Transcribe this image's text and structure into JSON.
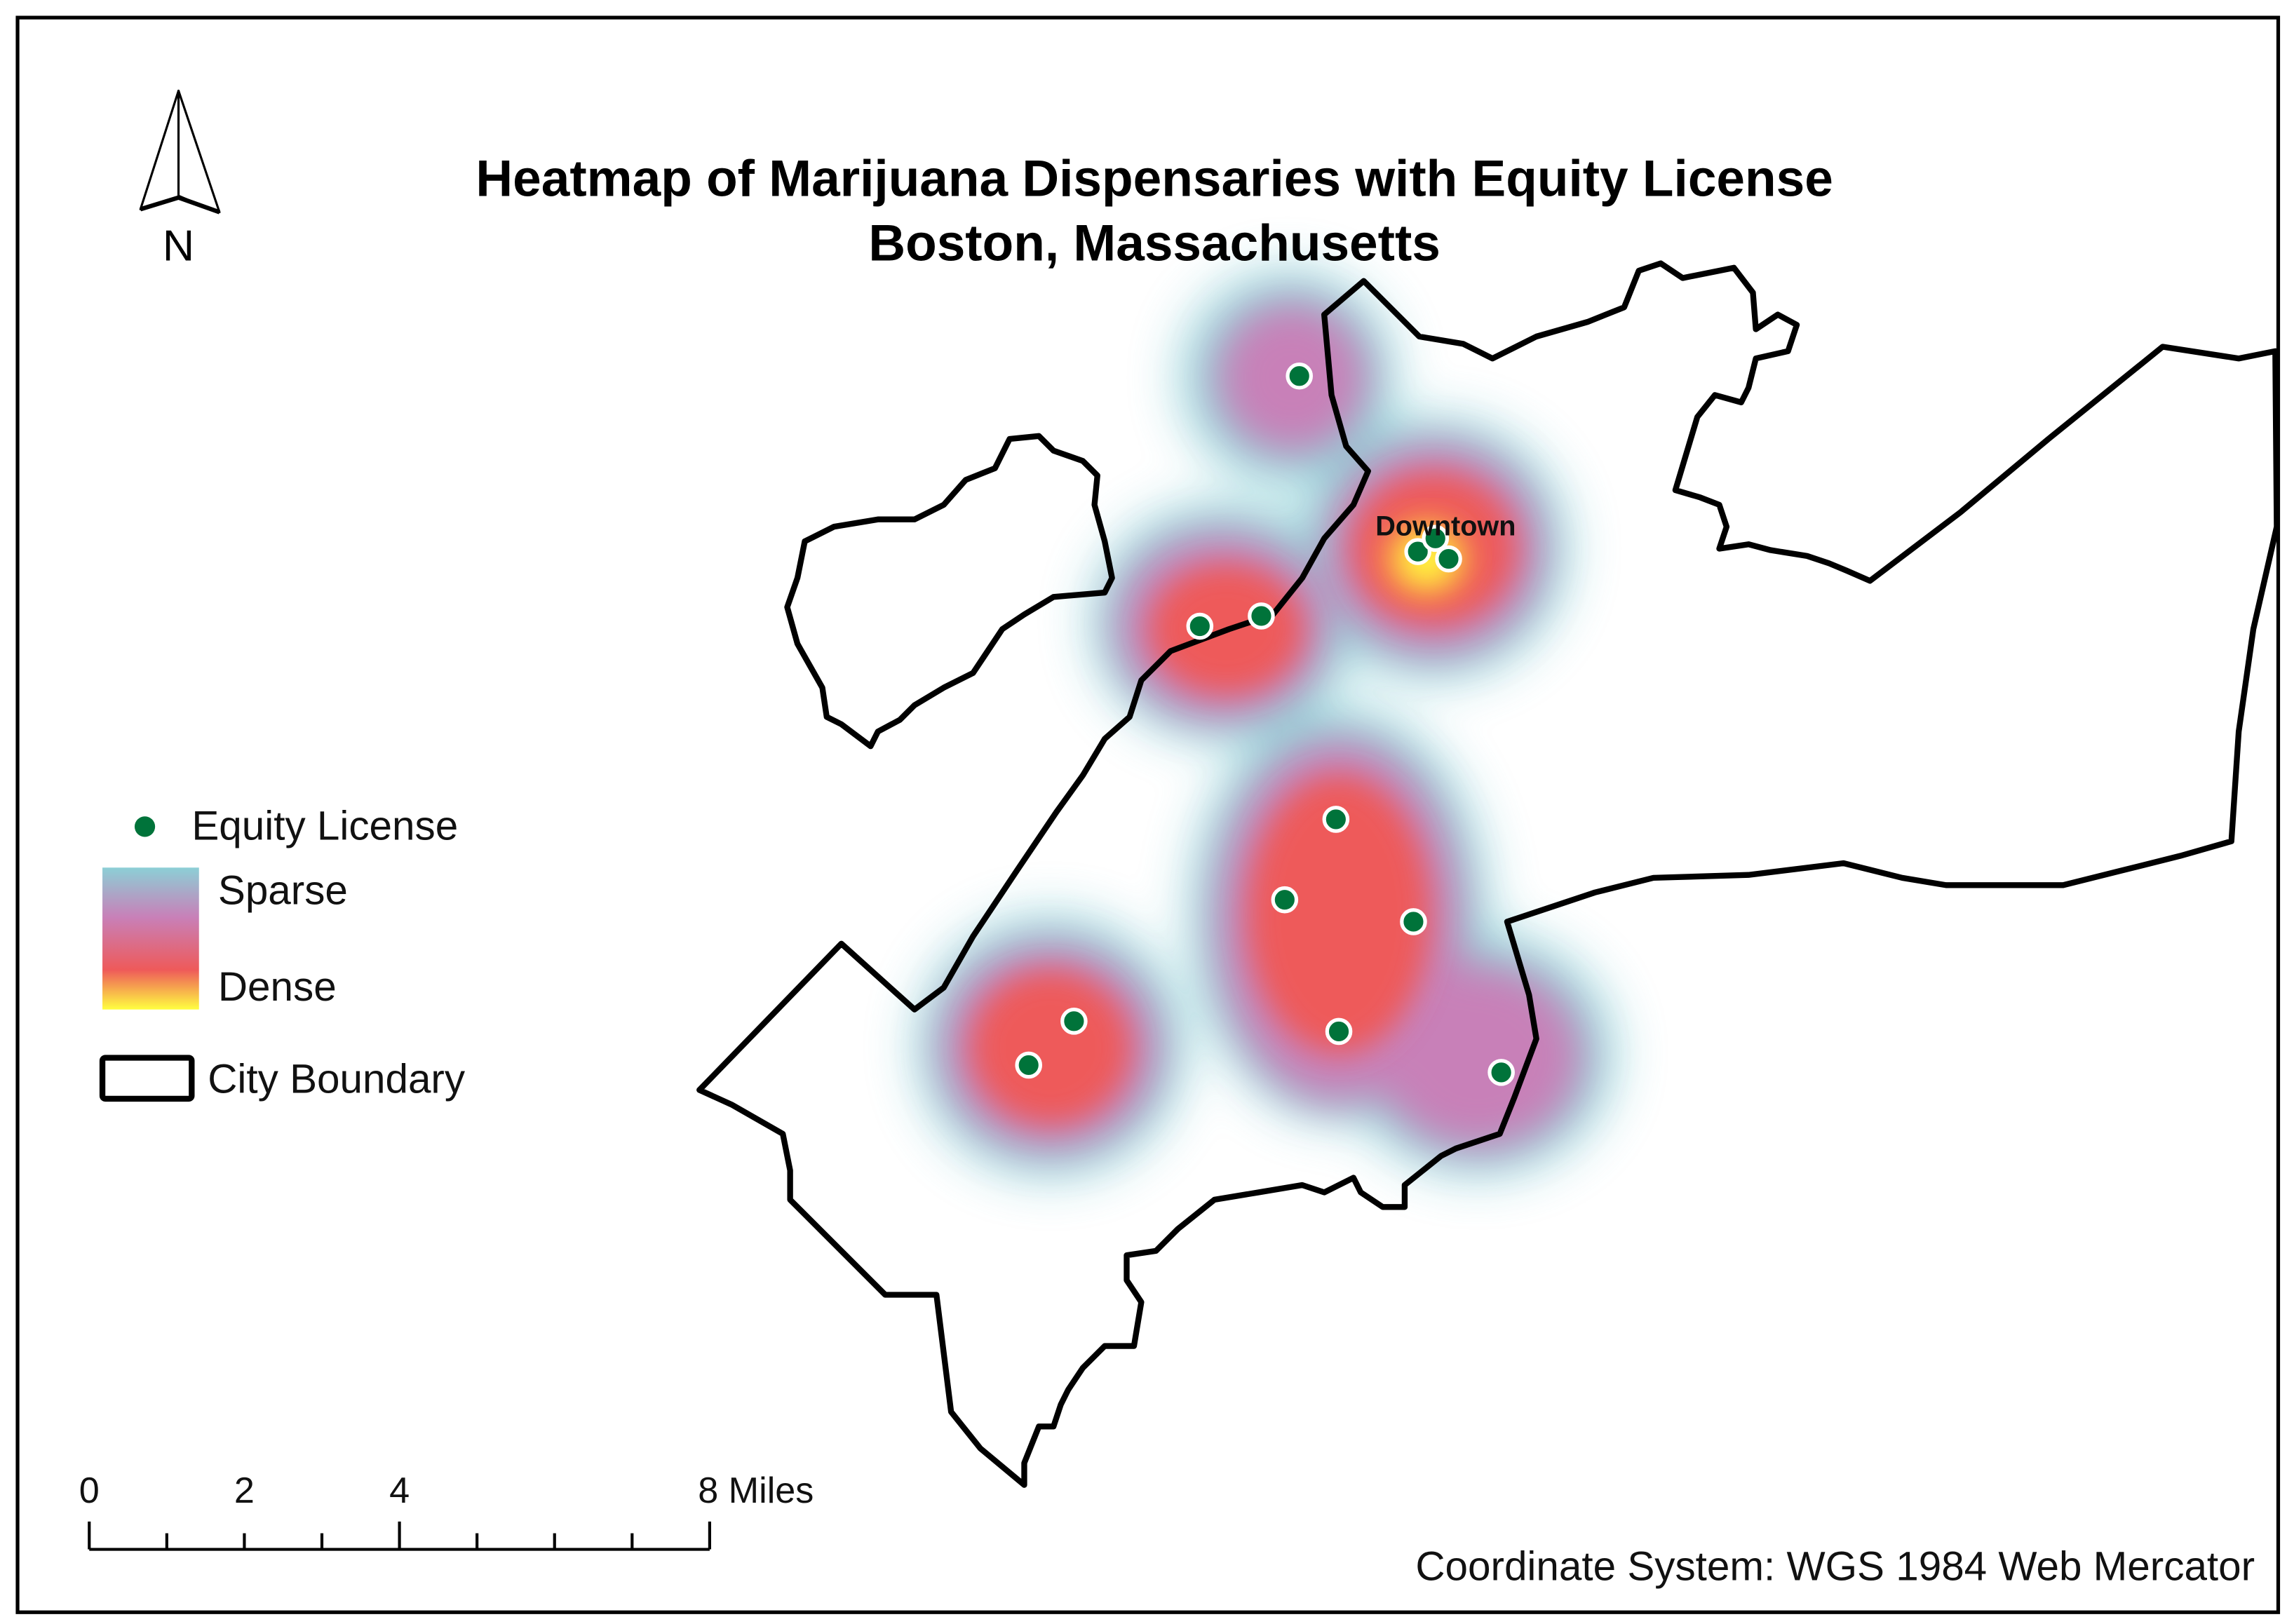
{
  "title_line1": "Heatmap of Marijuana Dispensaries with Equity License",
  "title_line2": "Boston, Massachusetts",
  "north_arrow": {
    "icon": "north-arrow-icon",
    "label": "N"
  },
  "legend": {
    "equity_license": "Equity License",
    "sparse": "Sparse",
    "dense": "Dense",
    "city_boundary": "City Boundary"
  },
  "heat_ramp_colors": [
    "#8ccfd6",
    "#c880b8",
    "#ee5a5a",
    "#ffff40"
  ],
  "point_color": "#00733a",
  "place_label": "Downtown",
  "scale_bar": {
    "ticks": [
      "0",
      "2",
      "4",
      "8 Miles"
    ]
  },
  "coordinate_system": "Coordinate System: WGS 1984 Web Mercator"
}
